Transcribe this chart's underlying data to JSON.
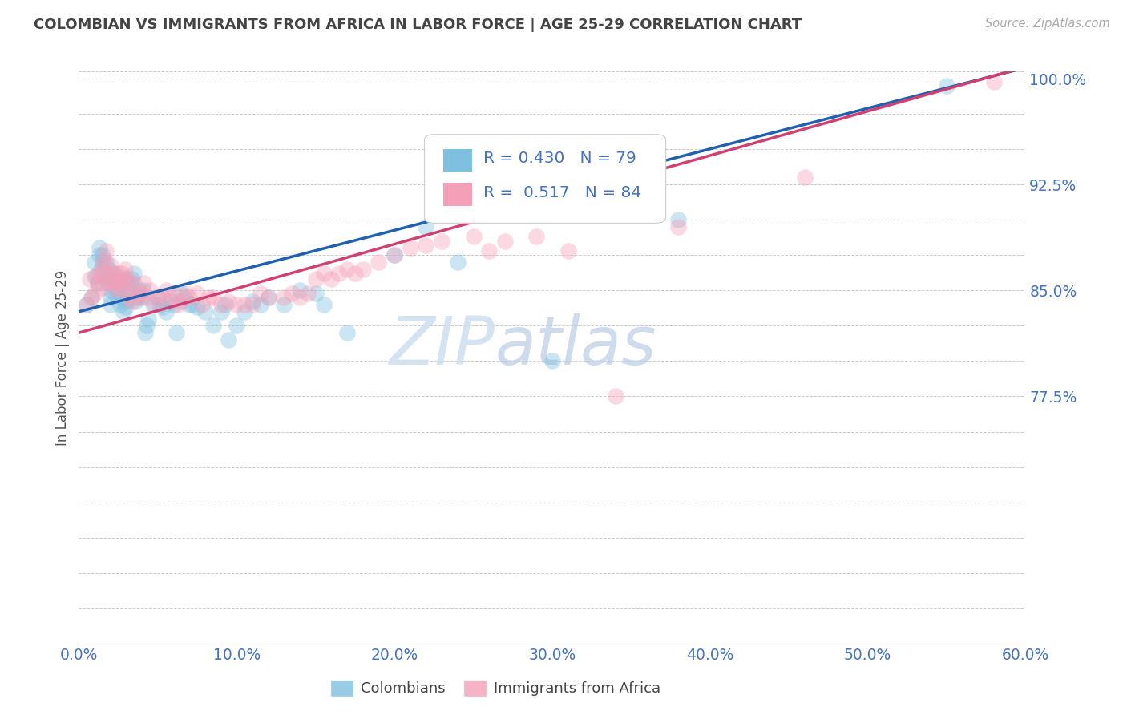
{
  "title": "COLOMBIAN VS IMMIGRANTS FROM AFRICA IN LABOR FORCE | AGE 25-29 CORRELATION CHART",
  "source": "Source: ZipAtlas.com",
  "ylabel": "In Labor Force | Age 25-29",
  "xlim": [
    0.0,
    0.6
  ],
  "ylim": [
    0.6,
    1.005
  ],
  "yticks": [
    0.625,
    0.65,
    0.675,
    0.7,
    0.725,
    0.75,
    0.775,
    0.8,
    0.825,
    0.85,
    0.875,
    0.9,
    0.925,
    0.95,
    0.975,
    1.0
  ],
  "ytick_labels_show": [
    0.775,
    0.85,
    0.925,
    1.0
  ],
  "xticks": [
    0.0,
    0.1,
    0.2,
    0.3,
    0.4,
    0.5,
    0.6
  ],
  "blue_R": 0.43,
  "blue_N": 79,
  "pink_R": 0.517,
  "pink_N": 84,
  "blue_color": "#7fbfdf",
  "pink_color": "#f4a0b8",
  "blue_line_color": "#2060b0",
  "pink_line_color": "#d04070",
  "legend_blue_label": "Colombians",
  "legend_pink_label": "Immigrants from Africa",
  "blue_x": [
    0.005,
    0.008,
    0.01,
    0.01,
    0.012,
    0.013,
    0.013,
    0.014,
    0.015,
    0.015,
    0.016,
    0.017,
    0.018,
    0.018,
    0.019,
    0.02,
    0.02,
    0.02,
    0.021,
    0.022,
    0.022,
    0.023,
    0.024,
    0.025,
    0.025,
    0.026,
    0.027,
    0.028,
    0.028,
    0.029,
    0.03,
    0.03,
    0.031,
    0.032,
    0.033,
    0.034,
    0.035,
    0.036,
    0.037,
    0.038,
    0.04,
    0.041,
    0.042,
    0.043,
    0.044,
    0.047,
    0.05,
    0.051,
    0.053,
    0.055,
    0.058,
    0.06,
    0.062,
    0.065,
    0.067,
    0.07,
    0.072,
    0.075,
    0.08,
    0.085,
    0.09,
    0.093,
    0.095,
    0.1,
    0.105,
    0.11,
    0.115,
    0.12,
    0.13,
    0.14,
    0.15,
    0.155,
    0.17,
    0.2,
    0.22,
    0.24,
    0.3,
    0.38,
    0.55
  ],
  "blue_y": [
    0.84,
    0.845,
    0.86,
    0.87,
    0.855,
    0.875,
    0.88,
    0.865,
    0.87,
    0.875,
    0.86,
    0.87,
    0.855,
    0.86,
    0.865,
    0.84,
    0.845,
    0.85,
    0.858,
    0.862,
    0.855,
    0.848,
    0.85,
    0.855,
    0.858,
    0.84,
    0.845,
    0.835,
    0.852,
    0.858,
    0.842,
    0.838,
    0.855,
    0.848,
    0.855,
    0.858,
    0.862,
    0.842,
    0.845,
    0.85,
    0.845,
    0.85,
    0.82,
    0.825,
    0.83,
    0.84,
    0.845,
    0.84,
    0.838,
    0.835,
    0.842,
    0.84,
    0.82,
    0.848,
    0.845,
    0.84,
    0.84,
    0.838,
    0.835,
    0.825,
    0.835,
    0.84,
    0.815,
    0.825,
    0.835,
    0.842,
    0.84,
    0.845,
    0.84,
    0.85,
    0.848,
    0.84,
    0.82,
    0.875,
    0.895,
    0.87,
    0.8,
    0.9,
    0.995
  ],
  "pink_x": [
    0.005,
    0.007,
    0.008,
    0.01,
    0.011,
    0.012,
    0.013,
    0.014,
    0.015,
    0.015,
    0.016,
    0.017,
    0.018,
    0.019,
    0.02,
    0.02,
    0.021,
    0.022,
    0.023,
    0.024,
    0.025,
    0.025,
    0.026,
    0.027,
    0.028,
    0.029,
    0.03,
    0.031,
    0.032,
    0.033,
    0.034,
    0.035,
    0.037,
    0.038,
    0.04,
    0.041,
    0.043,
    0.045,
    0.048,
    0.05,
    0.053,
    0.055,
    0.058,
    0.06,
    0.063,
    0.065,
    0.068,
    0.07,
    0.075,
    0.078,
    0.082,
    0.085,
    0.09,
    0.095,
    0.1,
    0.105,
    0.11,
    0.115,
    0.12,
    0.13,
    0.135,
    0.14,
    0.145,
    0.15,
    0.155,
    0.16,
    0.165,
    0.17,
    0.175,
    0.18,
    0.19,
    0.2,
    0.21,
    0.22,
    0.23,
    0.25,
    0.26,
    0.27,
    0.29,
    0.31,
    0.34,
    0.38,
    0.46,
    0.58
  ],
  "pink_y": [
    0.84,
    0.858,
    0.845,
    0.848,
    0.86,
    0.855,
    0.862,
    0.852,
    0.862,
    0.868,
    0.872,
    0.878,
    0.855,
    0.862,
    0.855,
    0.868,
    0.858,
    0.862,
    0.855,
    0.85,
    0.855,
    0.862,
    0.852,
    0.862,
    0.858,
    0.865,
    0.855,
    0.858,
    0.845,
    0.848,
    0.842,
    0.855,
    0.848,
    0.845,
    0.848,
    0.855,
    0.845,
    0.85,
    0.84,
    0.845,
    0.845,
    0.85,
    0.845,
    0.848,
    0.84,
    0.842,
    0.848,
    0.845,
    0.848,
    0.84,
    0.845,
    0.845,
    0.84,
    0.842,
    0.84,
    0.84,
    0.84,
    0.848,
    0.845,
    0.845,
    0.848,
    0.845,
    0.848,
    0.858,
    0.862,
    0.858,
    0.862,
    0.865,
    0.862,
    0.865,
    0.87,
    0.875,
    0.88,
    0.882,
    0.885,
    0.888,
    0.878,
    0.885,
    0.888,
    0.878,
    0.775,
    0.895,
    0.93,
    0.998
  ],
  "bg_color": "#ffffff",
  "grid_color": "#cccccc",
  "title_color": "#444444",
  "axis_label_color": "#4472c4",
  "ylabel_color": "#555555",
  "watermark_zip": "ZIP",
  "watermark_atlas": "atlas",
  "watermark_color": "#d0e0f0"
}
